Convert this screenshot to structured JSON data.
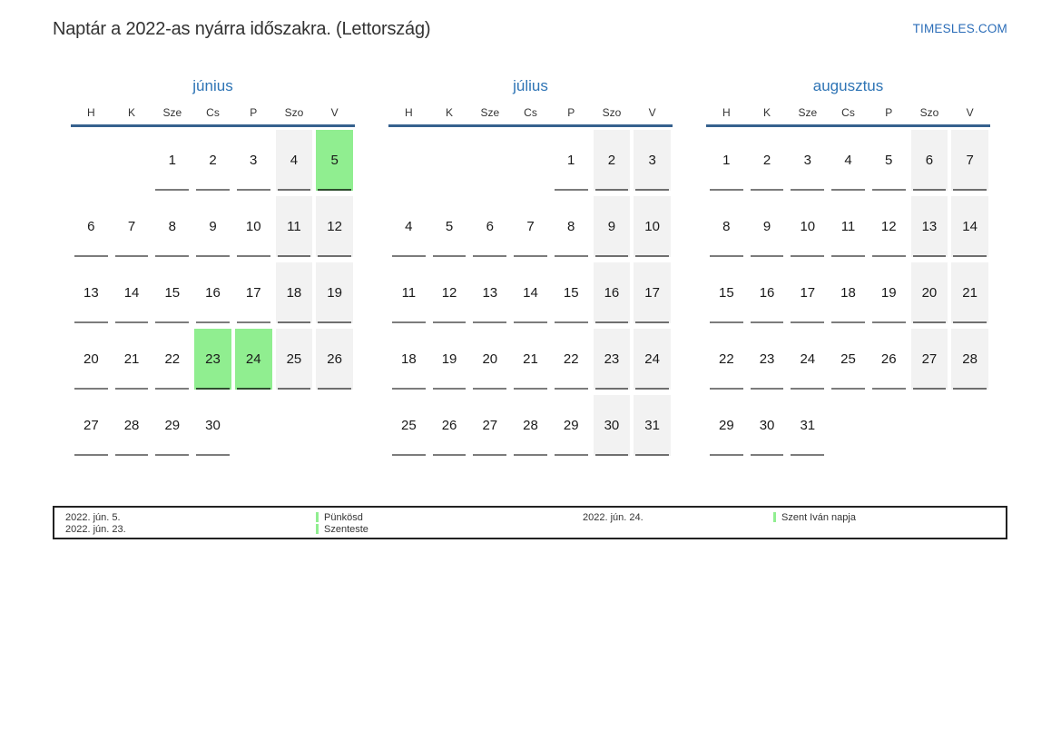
{
  "page": {
    "title": "Naptár a 2022-as nyárra időszakra. (Lettország)",
    "site": "TIMESLES.COM"
  },
  "calendar": {
    "weekday_headers": [
      "H",
      "K",
      "Sze",
      "Cs",
      "P",
      "Szo",
      "V"
    ],
    "weekend_columns": [
      5,
      6
    ],
    "months": [
      {
        "name": "június",
        "slug": "junius",
        "holidays": [
          5,
          23,
          24
        ],
        "weeks": [
          [
            "",
            "",
            "1",
            "2",
            "3",
            "4",
            "5"
          ],
          [
            "6",
            "7",
            "8",
            "9",
            "10",
            "11",
            "12"
          ],
          [
            "13",
            "14",
            "15",
            "16",
            "17",
            "18",
            "19"
          ],
          [
            "20",
            "21",
            "22",
            "23",
            "24",
            "25",
            "26"
          ],
          [
            "27",
            "28",
            "29",
            "30",
            "",
            "",
            ""
          ]
        ]
      },
      {
        "name": "július",
        "slug": "julius",
        "holidays": [],
        "weeks": [
          [
            "",
            "",
            "",
            "",
            "1",
            "2",
            "3"
          ],
          [
            "4",
            "5",
            "6",
            "7",
            "8",
            "9",
            "10"
          ],
          [
            "11",
            "12",
            "13",
            "14",
            "15",
            "16",
            "17"
          ],
          [
            "18",
            "19",
            "20",
            "21",
            "22",
            "23",
            "24"
          ],
          [
            "25",
            "26",
            "27",
            "28",
            "29",
            "30",
            "31"
          ]
        ]
      },
      {
        "name": "augusztus",
        "slug": "augusztus",
        "holidays": [],
        "weeks": [
          [
            "1",
            "2",
            "3",
            "4",
            "5",
            "6",
            "7"
          ],
          [
            "8",
            "9",
            "10",
            "11",
            "12",
            "13",
            "14"
          ],
          [
            "15",
            "16",
            "17",
            "18",
            "19",
            "20",
            "21"
          ],
          [
            "22",
            "23",
            "24",
            "25",
            "26",
            "27",
            "28"
          ],
          [
            "29",
            "30",
            "31",
            "",
            "",
            "",
            ""
          ]
        ]
      }
    ]
  },
  "legend": {
    "entries": [
      {
        "date": "2022. jún. 5.",
        "name": "Pünkösd"
      },
      {
        "date": "2022. jún. 23.",
        "name": "Szenteste"
      },
      {
        "date": "2022. jún. 24.",
        "name": "Szent Iván napja"
      }
    ],
    "columns": [
      [
        0,
        1
      ],
      [
        2
      ]
    ]
  },
  "colors": {
    "accent_blue": "#2e74b5",
    "header_rule": "#36618e",
    "weekend_bg": "#f2f2f2",
    "holiday_bg": "#90ee90",
    "underline": "#7c7c7c",
    "text": "#333333"
  }
}
